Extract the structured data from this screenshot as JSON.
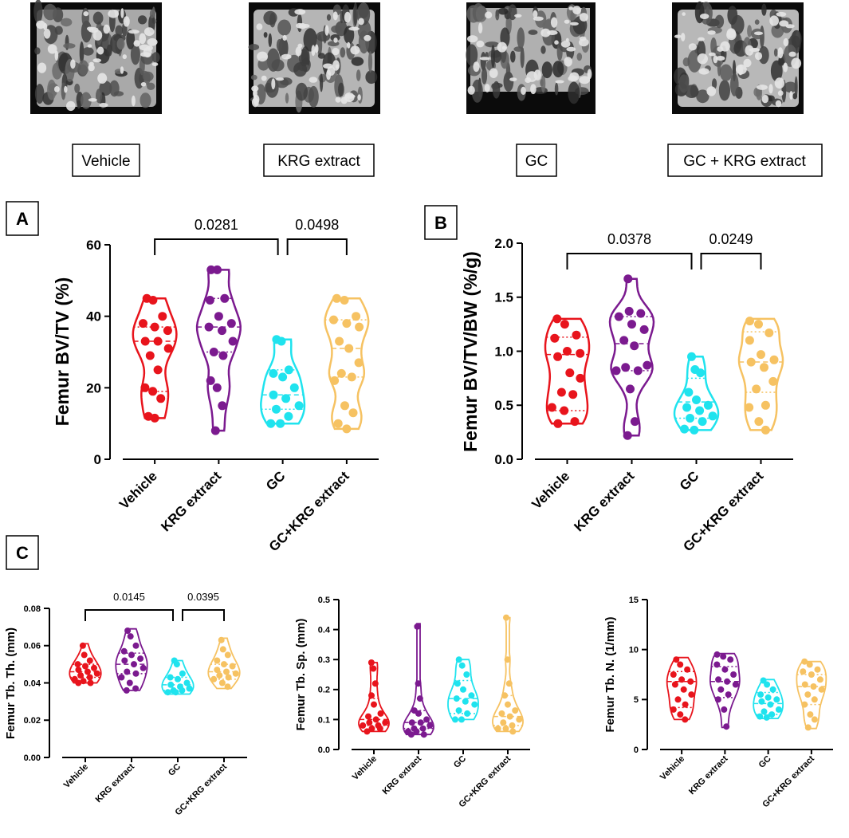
{
  "images": {
    "labels": [
      "Vehicle",
      "KRG extract",
      "GC",
      "GC + KRG extract"
    ],
    "image_desc": "micro-CT 3D reconstruction of femoral trabecular bone"
  },
  "colors": {
    "Vehicle": "#e8141c",
    "KRG extract": "#7b1a8f",
    "GC": "#1fe3ee",
    "GC+KRG extract": "#f6c262"
  },
  "chart_data": [
    {
      "id": "A",
      "panel_label": "A",
      "type": "violin",
      "ylabel": "Femur BV/TV (%)",
      "ylim": [
        0,
        60
      ],
      "yticks": [
        0,
        20,
        40,
        60
      ],
      "ytick_labels": [
        "0",
        "20",
        "40",
        "60"
      ],
      "categories": [
        "Vehicle",
        "KRG extract",
        "GC",
        "GC+KRG extract"
      ],
      "series": [
        {
          "name": "Vehicle",
          "points": [
            45,
            44.5,
            40,
            38,
            37,
            36,
            33,
            33,
            31,
            29,
            25,
            20,
            19,
            17,
            12,
            11.5
          ],
          "median": 33,
          "q1": 19,
          "q3": 37,
          "min": 11.5,
          "max": 45
        },
        {
          "name": "KRG extract",
          "points": [
            53,
            53,
            45,
            44.5,
            40,
            38,
            37,
            36,
            33,
            30,
            29,
            22,
            20,
            15,
            8
          ],
          "median": 37,
          "q1": 30,
          "q3": 45,
          "min": 8,
          "max": 53
        },
        {
          "name": "GC",
          "points": [
            33.5,
            33,
            25,
            24,
            23,
            20,
            18,
            17,
            15,
            14,
            12,
            10,
            10
          ],
          "median": 18,
          "q1": 14,
          "q3": 25,
          "min": 10,
          "max": 33.5
        },
        {
          "name": "GC+KRG extract",
          "points": [
            45,
            44.5,
            40,
            39,
            38,
            37,
            33,
            31,
            27,
            24,
            23,
            22,
            15,
            13,
            10,
            8.5
          ],
          "median": 31,
          "q1": 23,
          "q3": 39,
          "min": 8.5,
          "max": 45
        }
      ],
      "comparisons": [
        {
          "from": 0,
          "to": 2,
          "label": "0.0281"
        },
        {
          "from": 2,
          "to": 3,
          "label": "0.0498"
        }
      ]
    },
    {
      "id": "B",
      "panel_label": "B",
      "type": "violin",
      "ylabel": "Femur BV/TV/BW (%/g)",
      "ylim": [
        0,
        2
      ],
      "yticks": [
        0,
        0.5,
        1.0,
        1.5,
        2.0
      ],
      "ytick_labels": [
        "0.0",
        "0.5",
        "1.0",
        "1.5",
        "2.0"
      ],
      "categories": [
        "Vehicle",
        "KRG extract",
        "GC",
        "GC+KRG extract"
      ],
      "series": [
        {
          "name": "Vehicle",
          "points": [
            1.3,
            1.25,
            1.15,
            1.12,
            1.0,
            0.98,
            0.95,
            0.8,
            0.75,
            0.62,
            0.6,
            0.48,
            0.45,
            0.35,
            0.33
          ],
          "median": 0.97,
          "q1": 0.45,
          "q3": 1.13,
          "min": 0.33,
          "max": 1.3
        },
        {
          "name": "KRG extract",
          "points": [
            1.67,
            1.37,
            1.35,
            1.32,
            1.25,
            1.2,
            1.1,
            1.05,
            0.87,
            0.85,
            0.82,
            0.82,
            0.65,
            0.35,
            0.22
          ],
          "median": 1.07,
          "q1": 0.82,
          "q3": 1.32,
          "min": 0.22,
          "max": 1.67
        },
        {
          "name": "GC",
          "points": [
            0.95,
            0.83,
            0.8,
            0.62,
            0.55,
            0.5,
            0.48,
            0.45,
            0.4,
            0.38,
            0.35,
            0.28,
            0.27
          ],
          "median": 0.53,
          "q1": 0.38,
          "q3": 0.75,
          "min": 0.27,
          "max": 0.95
        },
        {
          "name": "GC+KRG extract",
          "points": [
            1.28,
            1.25,
            1.17,
            1.1,
            0.97,
            0.92,
            0.9,
            0.85,
            0.72,
            0.65,
            0.5,
            0.48,
            0.35,
            0.27
          ],
          "median": 0.9,
          "q1": 0.62,
          "q3": 1.18,
          "min": 0.27,
          "max": 1.3
        }
      ],
      "comparisons": [
        {
          "from": 0,
          "to": 2,
          "label": "0.0378"
        },
        {
          "from": 2,
          "to": 3,
          "label": "0.0249"
        }
      ]
    },
    {
      "id": "C1",
      "panel_label": "C",
      "type": "violin",
      "ylabel": "Femur Tb. Th. (mm)",
      "ylim": [
        0,
        0.08
      ],
      "yticks": [
        0,
        0.02,
        0.04,
        0.06,
        0.08
      ],
      "ytick_labels": [
        "0.00",
        "0.02",
        "0.04",
        "0.06",
        "0.08"
      ],
      "categories": [
        "Vehicle",
        "KRG extract",
        "GC",
        "GC+KRG extract"
      ],
      "series": [
        {
          "name": "Vehicle",
          "points": [
            0.06,
            0.055,
            0.052,
            0.05,
            0.049,
            0.048,
            0.047,
            0.046,
            0.045,
            0.044,
            0.043,
            0.042,
            0.041,
            0.04,
            0.04
          ],
          "median": 0.046,
          "q1": 0.043,
          "q3": 0.05,
          "min": 0.04,
          "max": 0.061
        },
        {
          "name": "KRG extract",
          "points": [
            0.068,
            0.065,
            0.06,
            0.057,
            0.055,
            0.053,
            0.052,
            0.05,
            0.048,
            0.046,
            0.045,
            0.043,
            0.04,
            0.037,
            0.036
          ],
          "median": 0.05,
          "q1": 0.045,
          "q3": 0.056,
          "min": 0.036,
          "max": 0.069
        },
        {
          "name": "GC",
          "points": [
            0.052,
            0.05,
            0.045,
            0.043,
            0.042,
            0.04,
            0.039,
            0.038,
            0.037,
            0.036,
            0.036,
            0.035,
            0.035
          ],
          "median": 0.039,
          "q1": 0.036,
          "q3": 0.043,
          "min": 0.034,
          "max": 0.052
        },
        {
          "name": "GC+KRG extract",
          "points": [
            0.063,
            0.058,
            0.055,
            0.052,
            0.05,
            0.049,
            0.047,
            0.046,
            0.045,
            0.044,
            0.043,
            0.042,
            0.04,
            0.038
          ],
          "median": 0.046,
          "q1": 0.042,
          "q3": 0.05,
          "min": 0.037,
          "max": 0.064
        }
      ],
      "comparisons": [
        {
          "from": 0,
          "to": 2,
          "label": "0.0145"
        },
        {
          "from": 2,
          "to": 3,
          "label": "0.0395"
        }
      ]
    },
    {
      "id": "C2",
      "panel_label": "",
      "type": "violin",
      "ylabel": "Femur Tb. Sp. (mm)",
      "ylim": [
        0,
        0.5
      ],
      "yticks": [
        0,
        0.1,
        0.2,
        0.3,
        0.4,
        0.5
      ],
      "ytick_labels": [
        "0.0",
        "0.1",
        "0.2",
        "0.3",
        "0.4",
        "0.5"
      ],
      "categories": [
        "Vehicle",
        "KRG extract",
        "GC",
        "GC+KRG extract"
      ],
      "series": [
        {
          "name": "Vehicle",
          "points": [
            0.29,
            0.27,
            0.22,
            0.18,
            0.15,
            0.12,
            0.11,
            0.1,
            0.09,
            0.09,
            0.08,
            0.08,
            0.07,
            0.07,
            0.06
          ],
          "median": 0.1,
          "q1": 0.08,
          "q3": 0.17,
          "min": 0.06,
          "max": 0.29
        },
        {
          "name": "KRG extract",
          "points": [
            0.41,
            0.22,
            0.17,
            0.13,
            0.12,
            0.1,
            0.09,
            0.09,
            0.08,
            0.07,
            0.07,
            0.06,
            0.06,
            0.05,
            0.05
          ],
          "median": 0.09,
          "q1": 0.07,
          "q3": 0.13,
          "min": 0.05,
          "max": 0.42
        },
        {
          "name": "GC",
          "points": [
            0.3,
            0.28,
            0.25,
            0.22,
            0.2,
            0.18,
            0.17,
            0.16,
            0.15,
            0.13,
            0.12,
            0.1,
            0.1
          ],
          "median": 0.17,
          "q1": 0.12,
          "q3": 0.23,
          "min": 0.1,
          "max": 0.3
        },
        {
          "name": "GC+KRG extract",
          "points": [
            0.44,
            0.3,
            0.22,
            0.18,
            0.15,
            0.13,
            0.12,
            0.11,
            0.1,
            0.09,
            0.08,
            0.07,
            0.07,
            0.06
          ],
          "median": 0.11,
          "q1": 0.08,
          "q3": 0.18,
          "min": 0.06,
          "max": 0.44
        }
      ],
      "comparisons": []
    },
    {
      "id": "C3",
      "panel_label": "",
      "type": "violin",
      "ylabel": "Femur Tb. N. (1/mm)",
      "ylim": [
        0,
        15
      ],
      "yticks": [
        0,
        5,
        10,
        15
      ],
      "ytick_labels": [
        "0",
        "5",
        "10",
        "15"
      ],
      "categories": [
        "Vehicle",
        "KRG extract",
        "GC",
        "GC+KRG extract"
      ],
      "series": [
        {
          "name": "Vehicle",
          "points": [
            9.0,
            8.5,
            8.0,
            7.5,
            7.0,
            6.8,
            6.5,
            6.0,
            5.5,
            5.0,
            4.5,
            4.0,
            3.5,
            3.0
          ],
          "median": 6.8,
          "q1": 4.2,
          "q3": 7.8,
          "min": 3.0,
          "max": 9.2
        },
        {
          "name": "KRG extract",
          "points": [
            9.5,
            9.3,
            9.0,
            8.5,
            8.0,
            7.5,
            7.0,
            6.8,
            6.5,
            6.0,
            5.5,
            5.0,
            4.0,
            2.3
          ],
          "median": 6.8,
          "q1": 5.2,
          "q3": 8.3,
          "min": 2.2,
          "max": 9.6
        },
        {
          "name": "GC",
          "points": [
            6.9,
            6.5,
            6.0,
            5.5,
            5.2,
            5.0,
            4.8,
            4.5,
            4.0,
            3.8,
            3.5,
            3.3,
            3.2
          ],
          "median": 4.6,
          "q1": 3.5,
          "q3": 5.7,
          "min": 3.1,
          "max": 7.0
        },
        {
          "name": "GC+KRG extract",
          "points": [
            8.8,
            8.5,
            8.0,
            7.8,
            7.5,
            7.0,
            6.5,
            6.3,
            6.0,
            5.5,
            5.0,
            4.5,
            3.5,
            3.0,
            2.2
          ],
          "median": 6.3,
          "q1": 4.5,
          "q3": 7.5,
          "min": 2.1,
          "max": 8.8
        }
      ],
      "comparisons": []
    }
  ]
}
